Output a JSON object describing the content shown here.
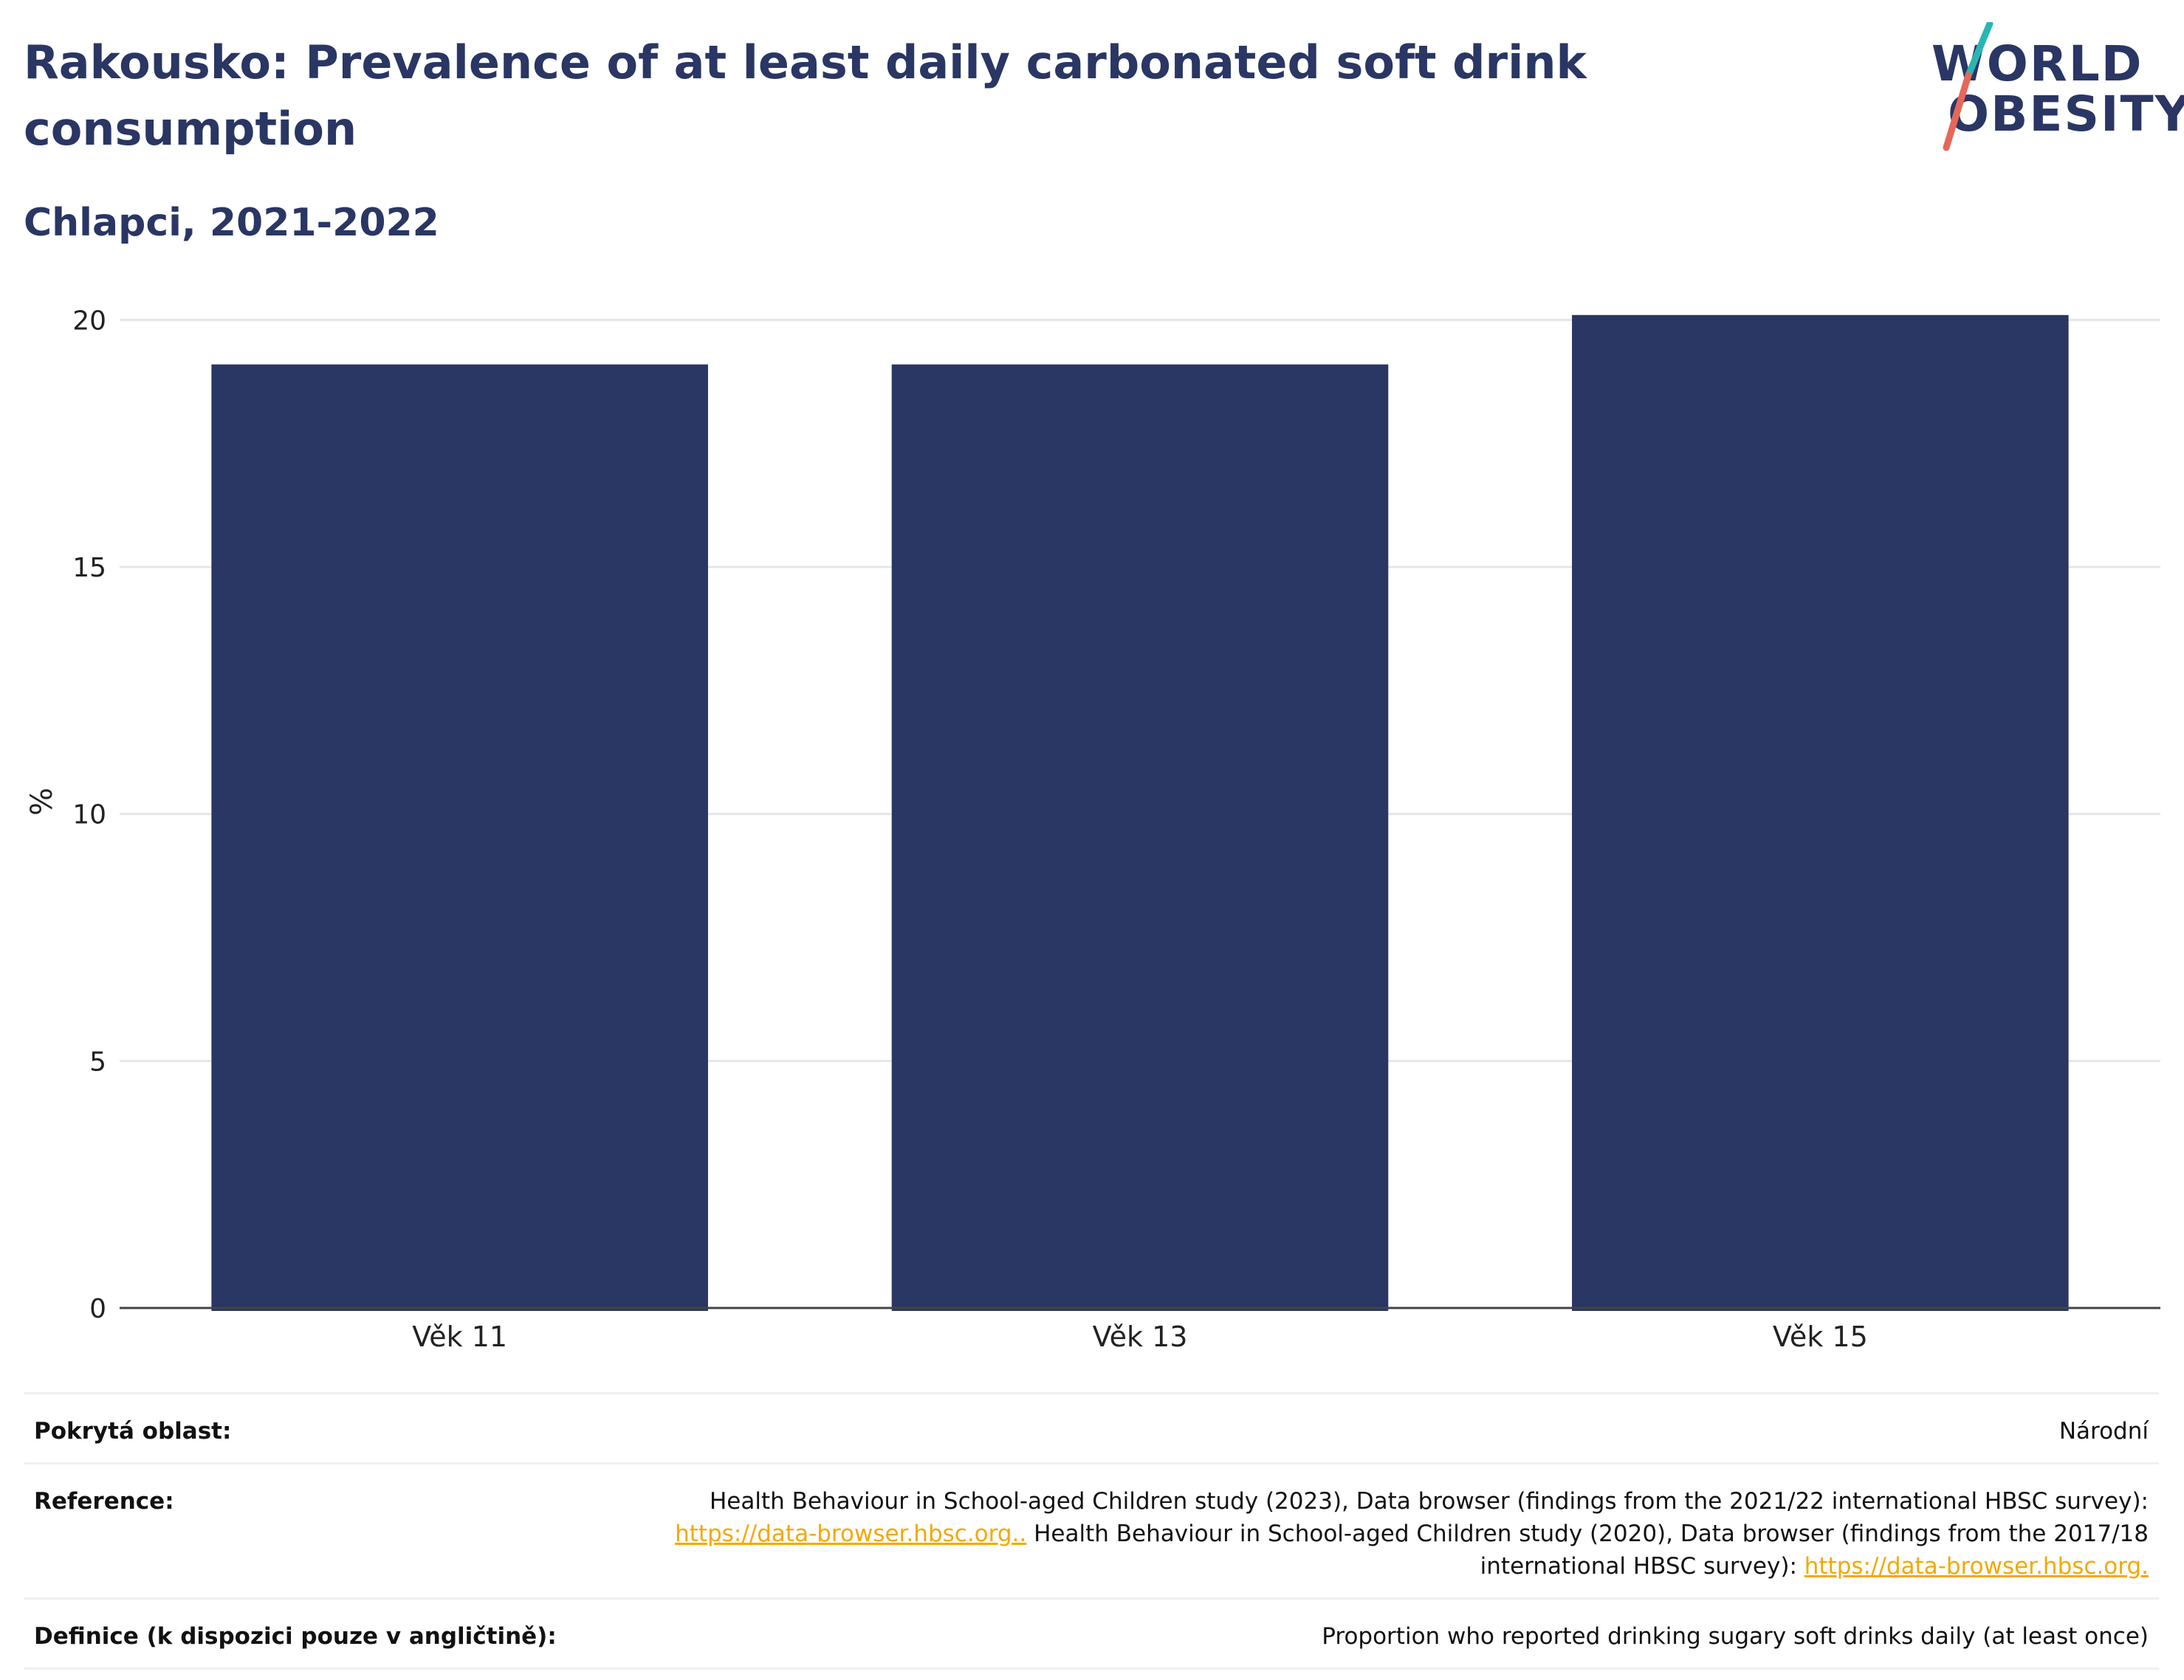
{
  "header": {
    "title": "Rakousko: Prevalence of at least daily carbonated soft drink consumption",
    "subtitle": "Chlapci, 2021-2022"
  },
  "logo": {
    "line1": "WORLD",
    "line2": "OBESITY",
    "colors": {
      "text": "#2a3663",
      "slash_top": "#2ab5b5",
      "slash_bottom": "#e5685a"
    }
  },
  "colors": {
    "bar": "#2a3663",
    "grid": "#e6e6e6",
    "axis": "#444444",
    "link": "#f5a800"
  },
  "chart_data": {
    "type": "bar",
    "categories": [
      "Věk 11",
      "Věk 13",
      "Věk 15"
    ],
    "values": [
      19.1,
      19.1,
      20.1
    ],
    "ylabel": "%",
    "xlabel": "",
    "ylim": [
      0,
      20.5
    ],
    "yticks": [
      0,
      5,
      10,
      15,
      20
    ],
    "grid": true
  },
  "meta": {
    "coverage": {
      "label": "Pokrytá oblast:",
      "value": "Národní"
    },
    "reference": {
      "label": "Reference:",
      "text1": "Health Behaviour in School-aged Children study (2023), Data browser (findings from the 2021/22 international HBSC survey):",
      "link1": "https://data-browser.hbsc.org..",
      "text2": " Health Behaviour in School-aged Children study (2020), Data browser (findings from the 2017/18 international HBSC survey): ",
      "link2": "https://data-browser.hbsc.org."
    },
    "definition": {
      "label": "Definice (k dispozici pouze v angličtině):",
      "value": "Proportion who reported drinking sugary soft drinks daily (at least once)"
    }
  }
}
